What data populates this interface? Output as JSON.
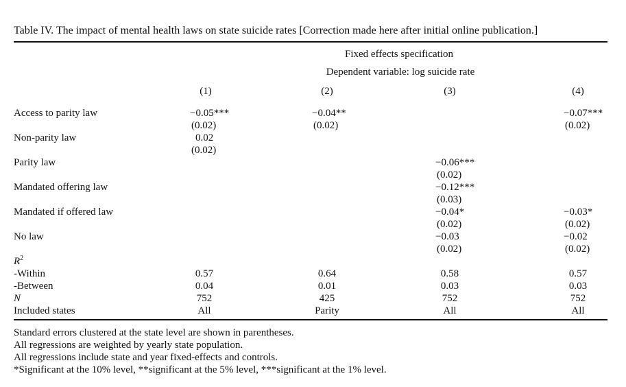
{
  "caption": "Table IV.  The impact of mental health laws on state suicide rates [Correction made here after initial online publication.]",
  "header": {
    "spec": "Fixed effects specification",
    "depvar": "Dependent variable: log suicide rate",
    "columns": [
      "(1)",
      "(2)",
      "(3)",
      "(4)"
    ]
  },
  "rows": {
    "access_parity": {
      "label": "Access to parity law",
      "c1": "−0.05***",
      "c1se": "(0.02)",
      "c2": "−0.04**",
      "c2se": "(0.02)",
      "c4": "−0.07***",
      "c4se": "(0.02)"
    },
    "non_parity": {
      "label": "Non-parity law",
      "c1": "0.02",
      "c1se": "(0.02)"
    },
    "parity": {
      "label": "Parity law",
      "c3": "−0.06***",
      "c3se": "(0.02)"
    },
    "mandated_offering": {
      "label": "Mandated offering law",
      "c3": "−0.12***",
      "c3se": "(0.03)"
    },
    "mandated_if_offered": {
      "label": "Mandated if offered law",
      "c3": "−0.04*",
      "c3se": "(0.02)",
      "c4": "−0.03*",
      "c4se": "(0.02)"
    },
    "no_law": {
      "label": "No law",
      "c3": "−0.03",
      "c3se": "(0.02)",
      "c4": "−0.02",
      "c4se": "(0.02)"
    },
    "r2": {
      "label": "R",
      "sup": "2"
    },
    "within": {
      "label": "-Within",
      "values": [
        "0.57",
        "0.64",
        "0.58",
        "0.57"
      ]
    },
    "between": {
      "label": "-Between",
      "values": [
        "0.04",
        "0.01",
        "0.03",
        "0.03"
      ]
    },
    "n": {
      "label": "N",
      "values": [
        "752",
        "425",
        "752",
        "752"
      ]
    },
    "included": {
      "label": "Included states",
      "values": [
        "All",
        "Parity",
        "All",
        "All"
      ]
    }
  },
  "notes": [
    "Standard errors clustered at the state level are shown in parentheses.",
    "All regressions are weighted by yearly state population.",
    "All regressions include state and year fixed-effects and controls.",
    "*Significant at the 10% level, **significant at the 5% level, ***significant at the 1% level."
  ]
}
